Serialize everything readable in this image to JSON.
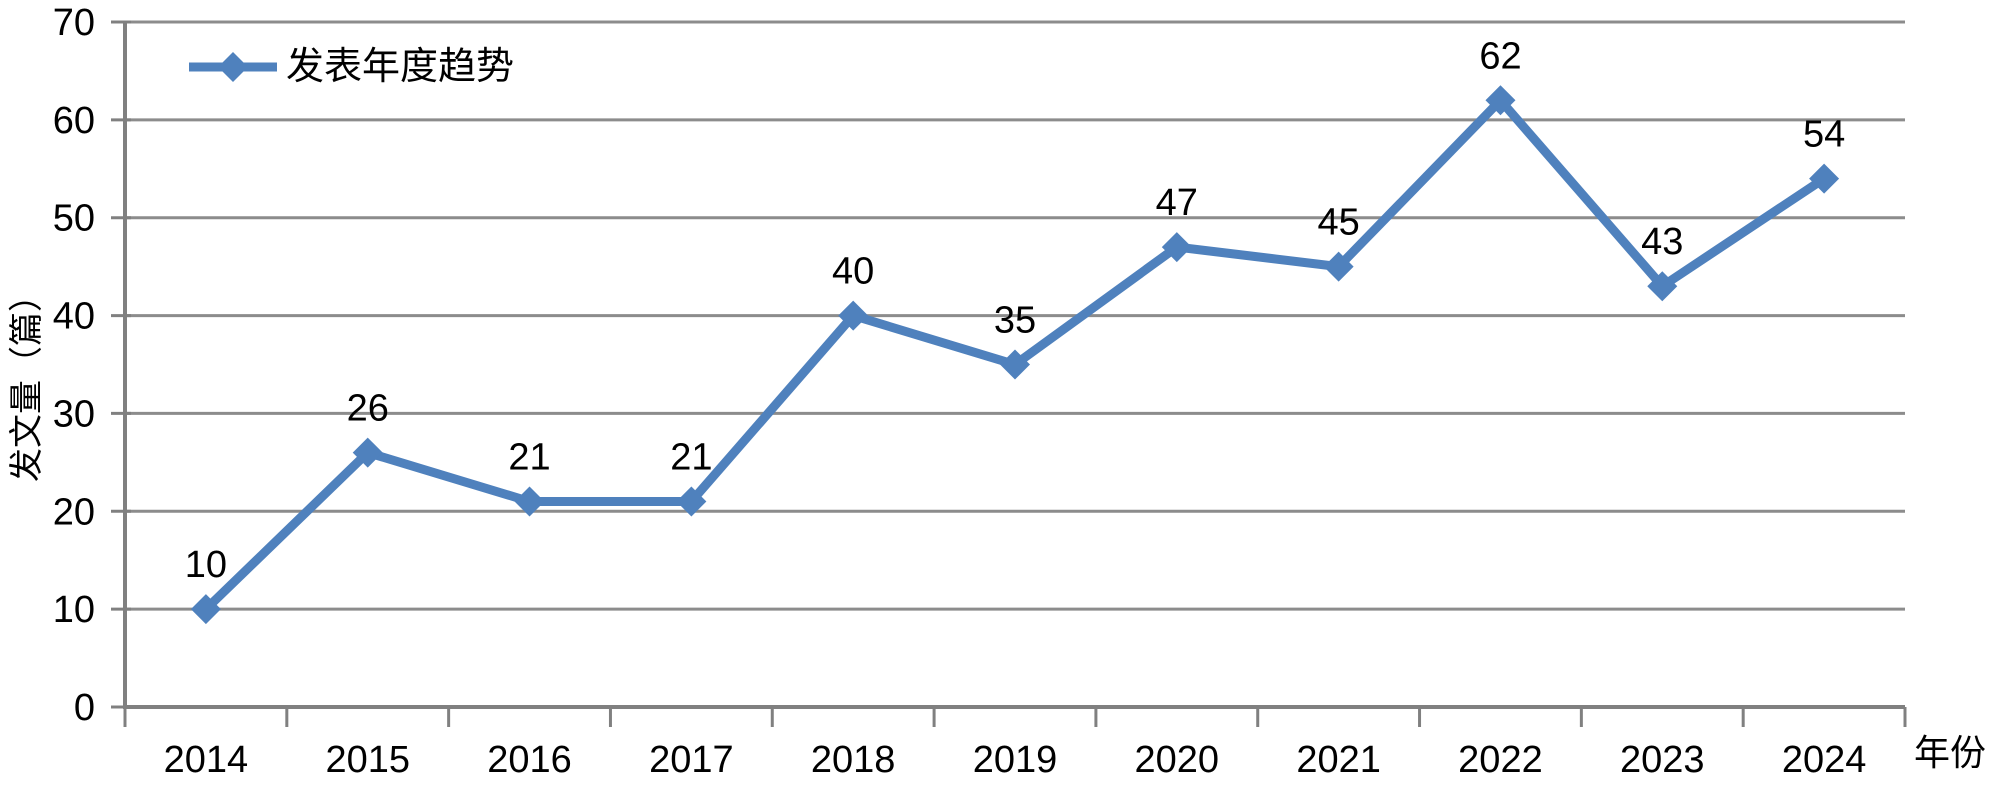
{
  "chart_data": {
    "type": "line",
    "title": "",
    "legend_label": "发表年度趋势",
    "xlabel": "年份",
    "ylabel": "发文量（篇）",
    "categories": [
      "2014",
      "2015",
      "2016",
      "2017",
      "2018",
      "2019",
      "2020",
      "2021",
      "2022",
      "2023",
      "2024"
    ],
    "series": [
      {
        "name": "发表年度趋势",
        "values": [
          10,
          26,
          21,
          21,
          40,
          35,
          47,
          45,
          62,
          43,
          54
        ]
      }
    ],
    "data_labels": true,
    "yticks": [
      0,
      10,
      20,
      30,
      40,
      50,
      60,
      70
    ],
    "ylim": [
      0,
      70
    ],
    "grid": "horizontal-only",
    "legend_position": "top-left-inside",
    "marker": "diamond",
    "colors": {
      "series": "#4F81BD",
      "gridline": "#8C8C8C",
      "axis": "#808080",
      "text": "#000000",
      "background": "#FFFFFF"
    }
  }
}
